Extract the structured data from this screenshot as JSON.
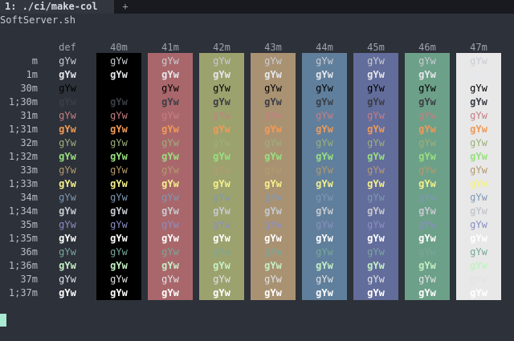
{
  "tabbar": {
    "active_tab": "1: ./ci/make-col",
    "plus": "+"
  },
  "title_line": "SoftServer.sh",
  "headers": [
    "def",
    "40m",
    "41m",
    "42m",
    "43m",
    "44m",
    "45m",
    "46m",
    "47m"
  ],
  "columns": [
    {
      "key": "def",
      "bg": null
    },
    {
      "key": "40m",
      "bg": "#000000"
    },
    {
      "key": "41m",
      "bg": "#a9676b"
    },
    {
      "key": "42m",
      "bg": "#9ca26e"
    },
    {
      "key": "43m",
      "bg": "#a99272"
    },
    {
      "key": "44m",
      "bg": "#607f9c"
    },
    {
      "key": "45m",
      "bg": "#636d9b"
    },
    {
      "key": "46m",
      "bg": "#6da089"
    },
    {
      "key": "47m",
      "bg": "#e8e8e8"
    }
  ],
  "rows": [
    {
      "label": "m",
      "fg": "#c9ccd2",
      "bold": false
    },
    {
      "label": "1m",
      "fg": "#e6e8ec",
      "bold": true
    },
    {
      "label": "30m",
      "fg": "#000000",
      "bold": false
    },
    {
      "label": "1;30m",
      "fg": "#3b3e45",
      "bold": true
    },
    {
      "label": "31m",
      "fg": "#c67e83",
      "bold": false
    },
    {
      "label": "1;31m",
      "fg": "#f09a57",
      "bold": true
    },
    {
      "label": "32m",
      "fg": "#9bb07a",
      "bold": false
    },
    {
      "label": "1;32m",
      "fg": "#98e07f",
      "bold": true
    },
    {
      "label": "33m",
      "fg": "#b49a6f",
      "bold": false
    },
    {
      "label": "1;33m",
      "fg": "#f4f08c",
      "bold": true
    },
    {
      "label": "34m",
      "fg": "#7e98b4",
      "bold": false
    },
    {
      "label": "1;34m",
      "fg": "#c6c9ce",
      "bold": true
    },
    {
      "label": "35m",
      "fg": "#8a8fc2",
      "bold": false
    },
    {
      "label": "1;35m",
      "fg": "#ffffff",
      "bold": true
    },
    {
      "label": "36m",
      "fg": "#78a79a",
      "bold": false
    },
    {
      "label": "1;36m",
      "fg": "#c6f0c6",
      "bold": true
    },
    {
      "label": "37m",
      "fg": "#e2e3e6",
      "bold": false
    },
    {
      "label": "1;37m",
      "fg": "#ffffff",
      "bold": true
    }
  ],
  "sample_text": "gYw"
}
